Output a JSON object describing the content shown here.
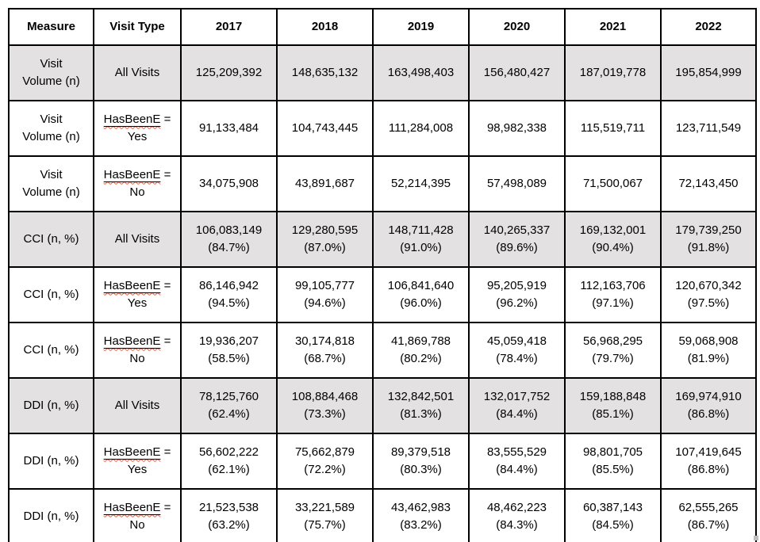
{
  "colors": {
    "border": "#000000",
    "shaded_row_bg": "#e3e1e2",
    "spellcheck_squiggle": "#ed5a41",
    "text": "#000000",
    "page_bg": "#ffffff"
  },
  "table": {
    "columns": [
      "Measure",
      "Visit Type",
      "2017",
      "2018",
      "2019",
      "2020",
      "2021",
      "2022"
    ],
    "rows": [
      {
        "measure_lines": [
          "Visit",
          "Volume (n)"
        ],
        "visit_type": {
          "lines": [
            "All Visits"
          ]
        },
        "shaded": true,
        "values": [
          [
            "125,209,392"
          ],
          [
            "148,635,132"
          ],
          [
            "163,498,403"
          ],
          [
            "156,480,427"
          ],
          [
            "187,019,778"
          ],
          [
            "195,854,999"
          ]
        ]
      },
      {
        "measure_lines": [
          "Visit",
          "Volume (n)"
        ],
        "visit_type": {
          "flagged_word": "HasBeenE",
          "suffix": "=",
          "line2": "Yes"
        },
        "shaded": false,
        "values": [
          [
            "91,133,484"
          ],
          [
            "104,743,445"
          ],
          [
            "111,284,008"
          ],
          [
            "98,982,338"
          ],
          [
            "115,519,711"
          ],
          [
            "123,711,549"
          ]
        ]
      },
      {
        "measure_lines": [
          "Visit",
          "Volume (n)"
        ],
        "visit_type": {
          "flagged_word": "HasBeenE",
          "suffix": "=",
          "line2": "No"
        },
        "shaded": false,
        "values": [
          [
            "34,075,908"
          ],
          [
            "43,891,687"
          ],
          [
            "52,214,395"
          ],
          [
            "57,498,089"
          ],
          [
            "71,500,067"
          ],
          [
            "72,143,450"
          ]
        ]
      },
      {
        "measure_lines": [
          "CCI (n, %)"
        ],
        "visit_type": {
          "lines": [
            "All Visits"
          ]
        },
        "shaded": true,
        "values": [
          [
            "106,083,149",
            "(84.7%)"
          ],
          [
            "129,280,595",
            "(87.0%)"
          ],
          [
            "148,711,428",
            "(91.0%)"
          ],
          [
            "140,265,337",
            "(89.6%)"
          ],
          [
            "169,132,001",
            "(90.4%)"
          ],
          [
            "179,739,250",
            "(91.8%)"
          ]
        ]
      },
      {
        "measure_lines": [
          "CCI (n, %)"
        ],
        "visit_type": {
          "flagged_word": "HasBeenE",
          "suffix": "=",
          "line2": "Yes"
        },
        "shaded": false,
        "values": [
          [
            "86,146,942",
            "(94.5%)"
          ],
          [
            "99,105,777",
            "(94.6%)"
          ],
          [
            "106,841,640",
            "(96.0%)"
          ],
          [
            "95,205,919",
            "(96.2%)"
          ],
          [
            "112,163,706",
            "(97.1%)"
          ],
          [
            "120,670,342",
            "(97.5%)"
          ]
        ]
      },
      {
        "measure_lines": [
          "CCI (n, %)"
        ],
        "visit_type": {
          "flagged_word": "HasBeenE",
          "suffix": "=",
          "line2": "No"
        },
        "shaded": false,
        "values": [
          [
            "19,936,207",
            "(58.5%)"
          ],
          [
            "30,174,818",
            "(68.7%)"
          ],
          [
            "41,869,788",
            "(80.2%)"
          ],
          [
            "45,059,418",
            "(78.4%)"
          ],
          [
            "56,968,295",
            "(79.7%)"
          ],
          [
            "59,068,908",
            "(81.9%)"
          ]
        ]
      },
      {
        "measure_lines": [
          "DDI (n, %)"
        ],
        "visit_type": {
          "lines": [
            "All Visits"
          ]
        },
        "shaded": true,
        "values": [
          [
            "78,125,760",
            "(62.4%)"
          ],
          [
            "108,884,468",
            "(73.3%)"
          ],
          [
            "132,842,501",
            "(81.3%)"
          ],
          [
            "132,017,752",
            "(84.4%)"
          ],
          [
            "159,188,848",
            "(85.1%)"
          ],
          [
            "169,974,910",
            "(86.8%)"
          ]
        ]
      },
      {
        "measure_lines": [
          "DDI (n, %)"
        ],
        "visit_type": {
          "flagged_word": "HasBeenE",
          "suffix": "=",
          "line2": "Yes"
        },
        "shaded": false,
        "values": [
          [
            "56,602,222",
            "(62.1%)"
          ],
          [
            "75,662,879",
            "(72.2%)"
          ],
          [
            "89,379,518",
            "(80.3%)"
          ],
          [
            "83,555,529",
            "(84.4%)"
          ],
          [
            "98,801,705",
            "(85.5%)"
          ],
          [
            "107,419,645",
            "(86.8%)"
          ]
        ]
      },
      {
        "measure_lines": [
          "DDI (n, %)"
        ],
        "visit_type": {
          "flagged_word": "HasBeenE",
          "suffix": "=",
          "line2": "No"
        },
        "shaded": false,
        "values": [
          [
            "21,523,538",
            "(63.2%)"
          ],
          [
            "33,221,589",
            "(75.7%)"
          ],
          [
            "43,462,983",
            "(83.2%)"
          ],
          [
            "48,462,223",
            "(84.3%)"
          ],
          [
            "60,387,143",
            "(84.5%)"
          ],
          [
            "62,555,265",
            "(86.7%)"
          ]
        ]
      }
    ]
  }
}
